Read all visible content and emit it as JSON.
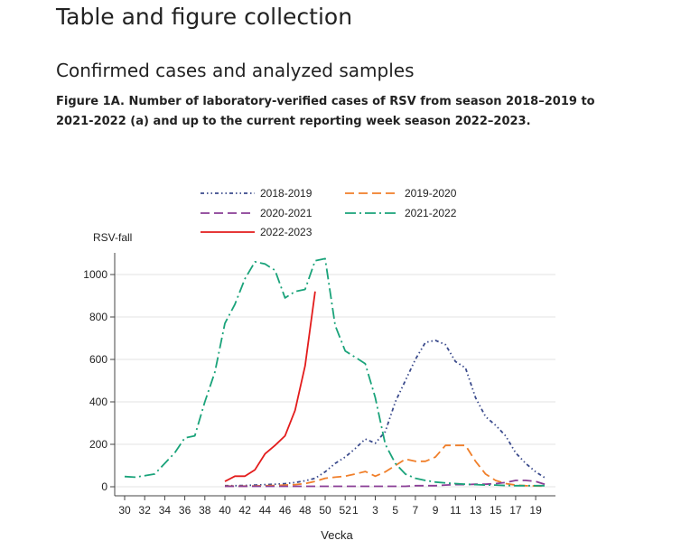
{
  "page": {
    "title": "Table and figure collection",
    "section_title": "Confirmed cases and analyzed samples",
    "figure_caption": "Figure 1A. Number of laboratory-verified cases of RSV from season 2018–2019 to 2021-2022 (a) and up to the current reporting week season 2022–2023."
  },
  "chart_data": {
    "type": "line",
    "title": "",
    "xlabel": "Vecka",
    "ylabel": "RSV-fall",
    "ylim": [
      0,
      1100
    ],
    "yticks": [
      0,
      200,
      400,
      600,
      800,
      1000
    ],
    "xticks": [
      "30",
      "32",
      "34",
      "36",
      "38",
      "40",
      "42",
      "44",
      "46",
      "48",
      "50",
      "52",
      "1",
      "3",
      "5",
      "7",
      "9",
      "11",
      "13",
      "15",
      "17",
      "19"
    ],
    "grid": true,
    "legend_position": "top",
    "x": [
      "30",
      "31",
      "32",
      "33",
      "34",
      "35",
      "36",
      "37",
      "38",
      "39",
      "40",
      "41",
      "42",
      "43",
      "44",
      "45",
      "46",
      "47",
      "48",
      "49",
      "50",
      "51",
      "52",
      "1",
      "2",
      "3",
      "4",
      "5",
      "6",
      "7",
      "8",
      "9",
      "10",
      "11",
      "12",
      "13",
      "14",
      "15",
      "16",
      "17",
      "18",
      "19",
      "20"
    ],
    "series": [
      {
        "name": "2018-2019",
        "color": "#3a4a8c",
        "dash": "dashdotdot",
        "values": [
          null,
          null,
          null,
          null,
          null,
          null,
          null,
          null,
          null,
          null,
          5,
          5,
          6,
          8,
          10,
          12,
          15,
          20,
          28,
          40,
          70,
          110,
          140,
          180,
          225,
          205,
          260,
          400,
          500,
          600,
          680,
          690,
          670,
          590,
          560,
          420,
          330,
          290,
          240,
          160,
          110,
          70,
          40
        ]
      },
      {
        "name": "2019-2020",
        "color": "#f07f2a",
        "dash": "dash",
        "values": [
          null,
          null,
          null,
          null,
          null,
          null,
          null,
          null,
          null,
          null,
          3,
          3,
          3,
          4,
          5,
          6,
          8,
          10,
          15,
          25,
          40,
          45,
          50,
          60,
          72,
          50,
          70,
          100,
          130,
          120,
          120,
          140,
          195,
          195,
          195,
          120,
          60,
          30,
          15,
          8,
          5,
          4,
          3
        ]
      },
      {
        "name": "2020-2021",
        "color": "#8a3e96",
        "dash": "dash",
        "values": [
          null,
          null,
          null,
          null,
          null,
          null,
          null,
          null,
          null,
          null,
          2,
          2,
          2,
          2,
          2,
          2,
          2,
          2,
          2,
          2,
          2,
          2,
          2,
          2,
          2,
          2,
          2,
          2,
          2,
          5,
          5,
          5,
          8,
          10,
          10,
          12,
          12,
          15,
          20,
          30,
          30,
          25,
          10
        ]
      },
      {
        "name": "2021-2022",
        "color": "#1aa37a",
        "dash": "longdashdot",
        "values": [
          48,
          45,
          52,
          60,
          110,
          160,
          230,
          240,
          400,
          540,
          770,
          860,
          980,
          1060,
          1050,
          1020,
          890,
          920,
          930,
          1065,
          1075,
          760,
          640,
          610,
          580,
          420,
          200,
          110,
          60,
          40,
          30,
          22,
          18,
          15,
          12,
          10,
          8,
          8,
          6,
          5,
          5,
          5,
          5
        ]
      },
      {
        "name": "2022-2023",
        "color": "#e31c1c",
        "dash": "solid",
        "values": [
          null,
          null,
          null,
          null,
          null,
          null,
          null,
          null,
          null,
          null,
          25,
          50,
          50,
          80,
          155,
          195,
          240,
          360,
          570,
          920,
          null,
          null,
          null,
          null,
          null,
          null,
          null,
          null,
          null,
          null,
          null,
          null,
          null,
          null,
          null,
          null,
          null,
          null,
          null,
          null,
          null,
          null,
          null
        ]
      }
    ]
  }
}
